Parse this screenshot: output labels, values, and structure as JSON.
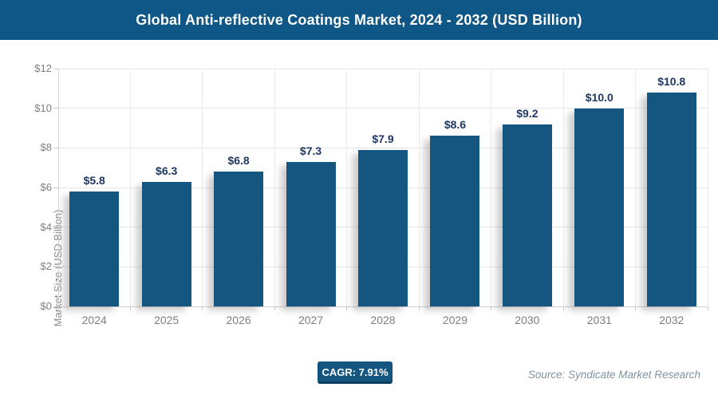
{
  "header": {
    "title": "Global Anti-reflective Coatings Market, 2024 - 2032 (USD Billion)"
  },
  "chart_data": {
    "type": "bar",
    "title": "Global Anti-reflective Coatings Market, 2024 - 2032 (USD Billion)",
    "categories": [
      "2024",
      "2025",
      "2026",
      "2027",
      "2028",
      "2029",
      "2030",
      "2031",
      "2032"
    ],
    "values": [
      5.8,
      6.3,
      6.8,
      7.3,
      7.9,
      8.6,
      9.2,
      10.0,
      10.8
    ],
    "value_labels": [
      "$5.8",
      "$6.3",
      "$6.8",
      "$7.3",
      "$7.9",
      "$8.6",
      "$9.2",
      "$10.0",
      "$10.8"
    ],
    "xlabel": "",
    "ylabel": "Market Size (USD Billion)",
    "ylim": [
      0,
      12
    ],
    "ytick_labels": [
      "$0",
      "$2",
      "$4",
      "$6",
      "$8",
      "$10",
      "$12"
    ],
    "grid": true,
    "legend": null,
    "bar_color": "#14567F"
  },
  "footer": {
    "cagr_label": "CAGR: 7.91%",
    "source": "Source: Syndicate Market Research"
  },
  "colors": {
    "header_bg": "#0F5786",
    "bar_fill": "#14567F",
    "value_label": "#1F3864",
    "axis_text": "#7F7F7F",
    "gridline": "#E6E6E6",
    "cagr_bg": "#14567F",
    "source_text": "#8093A0"
  }
}
